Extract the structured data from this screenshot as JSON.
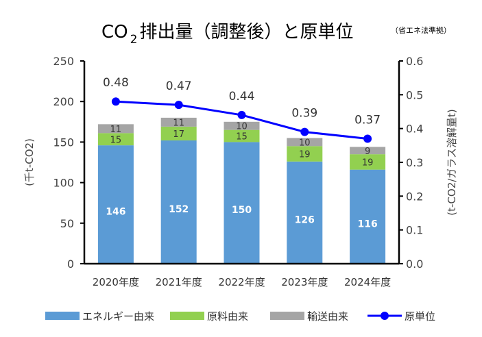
{
  "chart_data": {
    "type": "bar",
    "title_main": "CO",
    "title_sub": "2",
    "title_rest": "排出量（調整後）と原単位",
    "title_note": "（省エネ法準拠）",
    "categories": [
      "2020年度",
      "2021年度",
      "2022年度",
      "2023年度",
      "2024年度"
    ],
    "series": [
      {
        "name": "エネルギー由来",
        "color": "#5b9bd5",
        "values": [
          146,
          152,
          150,
          126,
          116
        ]
      },
      {
        "name": "原料由来",
        "color": "#92d050",
        "values": [
          15,
          17,
          15,
          19,
          19
        ]
      },
      {
        "name": "輸送由来",
        "color": "#a5a5a5",
        "values": [
          11,
          11,
          10,
          10,
          9
        ]
      }
    ],
    "line": {
      "name": "原単位",
      "color": "#0000ff",
      "values": [
        0.48,
        0.47,
        0.44,
        0.39,
        0.37
      ],
      "labels": [
        "0.48",
        "0.47",
        "0.44",
        "0.39",
        "0.37"
      ]
    },
    "ylabel_left": "(千t-CO2)",
    "ylabel_right": "(t-CO2/ガラス溶解量t)",
    "ylim_left": [
      0,
      250
    ],
    "ylim_right": [
      0,
      0.6
    ],
    "yticks_left": [
      "0",
      "50",
      "100",
      "150",
      "200",
      "250"
    ],
    "yticks_right": [
      "0.0",
      "0.1",
      "0.2",
      "0.3",
      "0.4",
      "0.5",
      "0.6"
    ],
    "legend_position": "bottom"
  }
}
